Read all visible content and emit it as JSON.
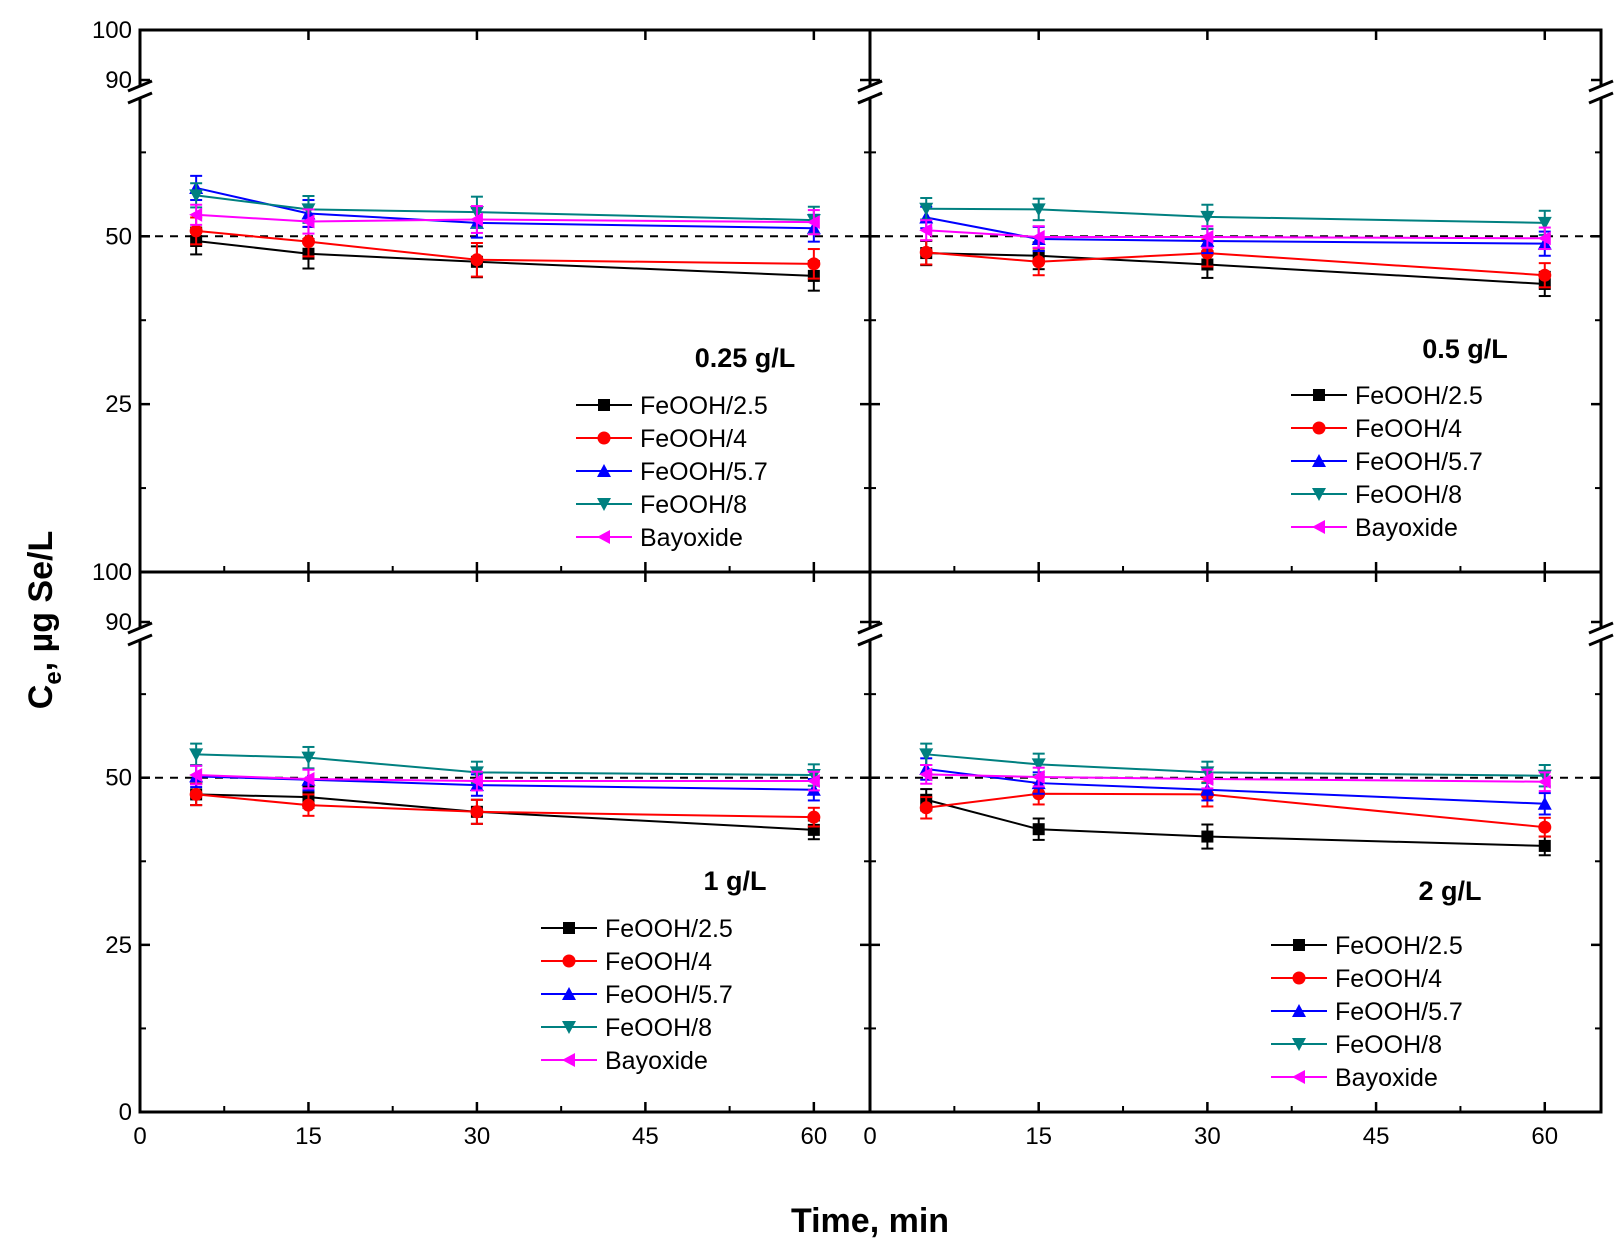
{
  "figure": {
    "xlabel": "Time, min",
    "ylabel_main": "C",
    "ylabel_sub": "e",
    "ylabel_rest": ", µg Se/L",
    "reference_line": 50
  },
  "chart_data": [
    {
      "type": "line",
      "title": "0.25 g/L",
      "legend_position": "lower-right",
      "xlim": [
        0,
        65
      ],
      "ylim": [
        0,
        100
      ],
      "axis_break": [
        70,
        90
      ],
      "x_ticks": [
        0,
        15,
        30,
        45,
        60
      ],
      "y_ticks": [
        0,
        25,
        50,
        90,
        100
      ],
      "show_x_ticks": false,
      "x": [
        5,
        15,
        30,
        60
      ],
      "series": [
        {
          "name": "FeOOH/2.5",
          "color": "#000000",
          "marker": "square",
          "values": [
            49.3,
            47.4,
            46.2,
            44.1
          ],
          "errors": [
            2,
            2.2,
            2.3,
            2.2
          ]
        },
        {
          "name": "FeOOH/4",
          "color": "#ff0000",
          "marker": "circle",
          "values": [
            50.8,
            49.2,
            46.5,
            45.9
          ],
          "errors": [
            2,
            2.2,
            2.5,
            2.2
          ]
        },
        {
          "name": "FeOOH/5.7",
          "color": "#0000ff",
          "marker": "triangle-up",
          "values": [
            57.2,
            53.4,
            52.0,
            51.2
          ],
          "errors": [
            1.8,
            2,
            2.2,
            2
          ]
        },
        {
          "name": "FeOOH/8",
          "color": "#008080",
          "marker": "triangle-down",
          "values": [
            56.1,
            54.0,
            53.6,
            52.4
          ],
          "errors": [
            1.8,
            2,
            2.3,
            2
          ]
        },
        {
          "name": "Bayoxide",
          "color": "#ff00ff",
          "marker": "triangle-left",
          "values": [
            53.2,
            52.2,
            52.5,
            52.1
          ],
          "errors": [
            1.5,
            1.8,
            2,
            1.8
          ]
        }
      ]
    },
    {
      "type": "line",
      "title": "0.5 g/L",
      "legend_position": "lower-right",
      "xlim": [
        0,
        65
      ],
      "ylim": [
        0,
        100
      ],
      "axis_break": [
        70,
        90
      ],
      "x_ticks": [
        0,
        15,
        30,
        45,
        60
      ],
      "y_ticks": [
        0,
        25,
        50,
        90,
        100
      ],
      "show_x_ticks": false,
      "x": [
        5,
        15,
        30,
        60
      ],
      "series": [
        {
          "name": "FeOOH/2.5",
          "color": "#000000",
          "marker": "square",
          "values": [
            47.5,
            47.1,
            45.8,
            42.9
          ],
          "errors": [
            1.8,
            2,
            2,
            1.8
          ]
        },
        {
          "name": "FeOOH/4",
          "color": "#ff0000",
          "marker": "circle",
          "values": [
            47.6,
            46.2,
            47.5,
            44.2
          ],
          "errors": [
            1.8,
            2,
            2,
            1.8
          ]
        },
        {
          "name": "FeOOH/5.7",
          "color": "#0000ff",
          "marker": "triangle-up",
          "values": [
            52.8,
            49.6,
            49.3,
            48.9
          ],
          "errors": [
            1.6,
            1.8,
            1.8,
            1.8
          ]
        },
        {
          "name": "FeOOH/8",
          "color": "#008080",
          "marker": "triangle-down",
          "values": [
            54.1,
            54.0,
            52.9,
            52.0
          ],
          "errors": [
            1.6,
            1.6,
            1.8,
            1.8
          ]
        },
        {
          "name": "Bayoxide",
          "color": "#ff00ff",
          "marker": "triangle-left",
          "values": [
            50.9,
            49.9,
            49.9,
            49.7
          ],
          "errors": [
            1.5,
            1.6,
            1.6,
            1.6
          ]
        }
      ]
    },
    {
      "type": "line",
      "title": "1 g/L",
      "legend_position": "lower-right",
      "xlim": [
        0,
        65
      ],
      "ylim": [
        0,
        100
      ],
      "axis_break": [
        70,
        90
      ],
      "x_ticks": [
        0,
        15,
        30,
        45,
        60
      ],
      "y_ticks": [
        0,
        25,
        50,
        90,
        100
      ],
      "show_x_ticks": true,
      "x": [
        5,
        15,
        30,
        60
      ],
      "series": [
        {
          "name": "FeOOH/2.5",
          "color": "#000000",
          "marker": "square",
          "values": [
            47.5,
            47.1,
            44.9,
            42.2
          ],
          "errors": [
            1.6,
            1.6,
            1.8,
            1.4
          ]
        },
        {
          "name": "FeOOH/4",
          "color": "#ff0000",
          "marker": "circle",
          "values": [
            47.5,
            45.9,
            44.9,
            44.1
          ],
          "errors": [
            1.6,
            1.6,
            1.8,
            1.4
          ]
        },
        {
          "name": "FeOOH/5.7",
          "color": "#0000ff",
          "marker": "triangle-up",
          "values": [
            50.2,
            49.7,
            48.9,
            48.2
          ],
          "errors": [
            1.6,
            1.6,
            1.6,
            1.6
          ]
        },
        {
          "name": "FeOOH/8",
          "color": "#008080",
          "marker": "triangle-down",
          "values": [
            53.5,
            53.0,
            50.8,
            50.4
          ],
          "errors": [
            1.6,
            1.6,
            1.6,
            1.6
          ]
        },
        {
          "name": "Bayoxide",
          "color": "#ff00ff",
          "marker": "triangle-left",
          "values": [
            50.4,
            49.8,
            49.5,
            49.5
          ],
          "errors": [
            1.4,
            1.4,
            1.4,
            1.4
          ]
        }
      ]
    },
    {
      "type": "line",
      "title": "2 g/L",
      "legend_position": "lower-right",
      "xlim": [
        0,
        65
      ],
      "ylim": [
        0,
        100
      ],
      "axis_break": [
        70,
        90
      ],
      "x_ticks": [
        0,
        15,
        30,
        45,
        60
      ],
      "y_ticks": [
        0,
        25,
        50,
        90,
        100
      ],
      "show_x_ticks": true,
      "x": [
        5,
        15,
        30,
        60
      ],
      "series": [
        {
          "name": "FeOOH/2.5",
          "color": "#000000",
          "marker": "square",
          "values": [
            46.7,
            42.3,
            41.2,
            39.8
          ],
          "errors": [
            1.6,
            1.6,
            1.8,
            1.4
          ]
        },
        {
          "name": "FeOOH/4",
          "color": "#ff0000",
          "marker": "circle",
          "values": [
            45.5,
            47.6,
            47.5,
            42.6
          ],
          "errors": [
            1.6,
            1.6,
            1.8,
            1.4
          ]
        },
        {
          "name": "FeOOH/5.7",
          "color": "#0000ff",
          "marker": "triangle-up",
          "values": [
            51.3,
            49.2,
            48.2,
            46.1
          ],
          "errors": [
            1.6,
            1.6,
            1.6,
            1.6
          ]
        },
        {
          "name": "FeOOH/8",
          "color": "#008080",
          "marker": "triangle-down",
          "values": [
            53.5,
            52.0,
            50.8,
            50.3
          ],
          "errors": [
            1.6,
            1.6,
            1.6,
            1.6
          ]
        },
        {
          "name": "Bayoxide",
          "color": "#ff00ff",
          "marker": "triangle-left",
          "values": [
            50.5,
            50.1,
            49.8,
            49.4
          ],
          "errors": [
            1.4,
            1.4,
            1.4,
            1.4
          ]
        }
      ]
    }
  ]
}
